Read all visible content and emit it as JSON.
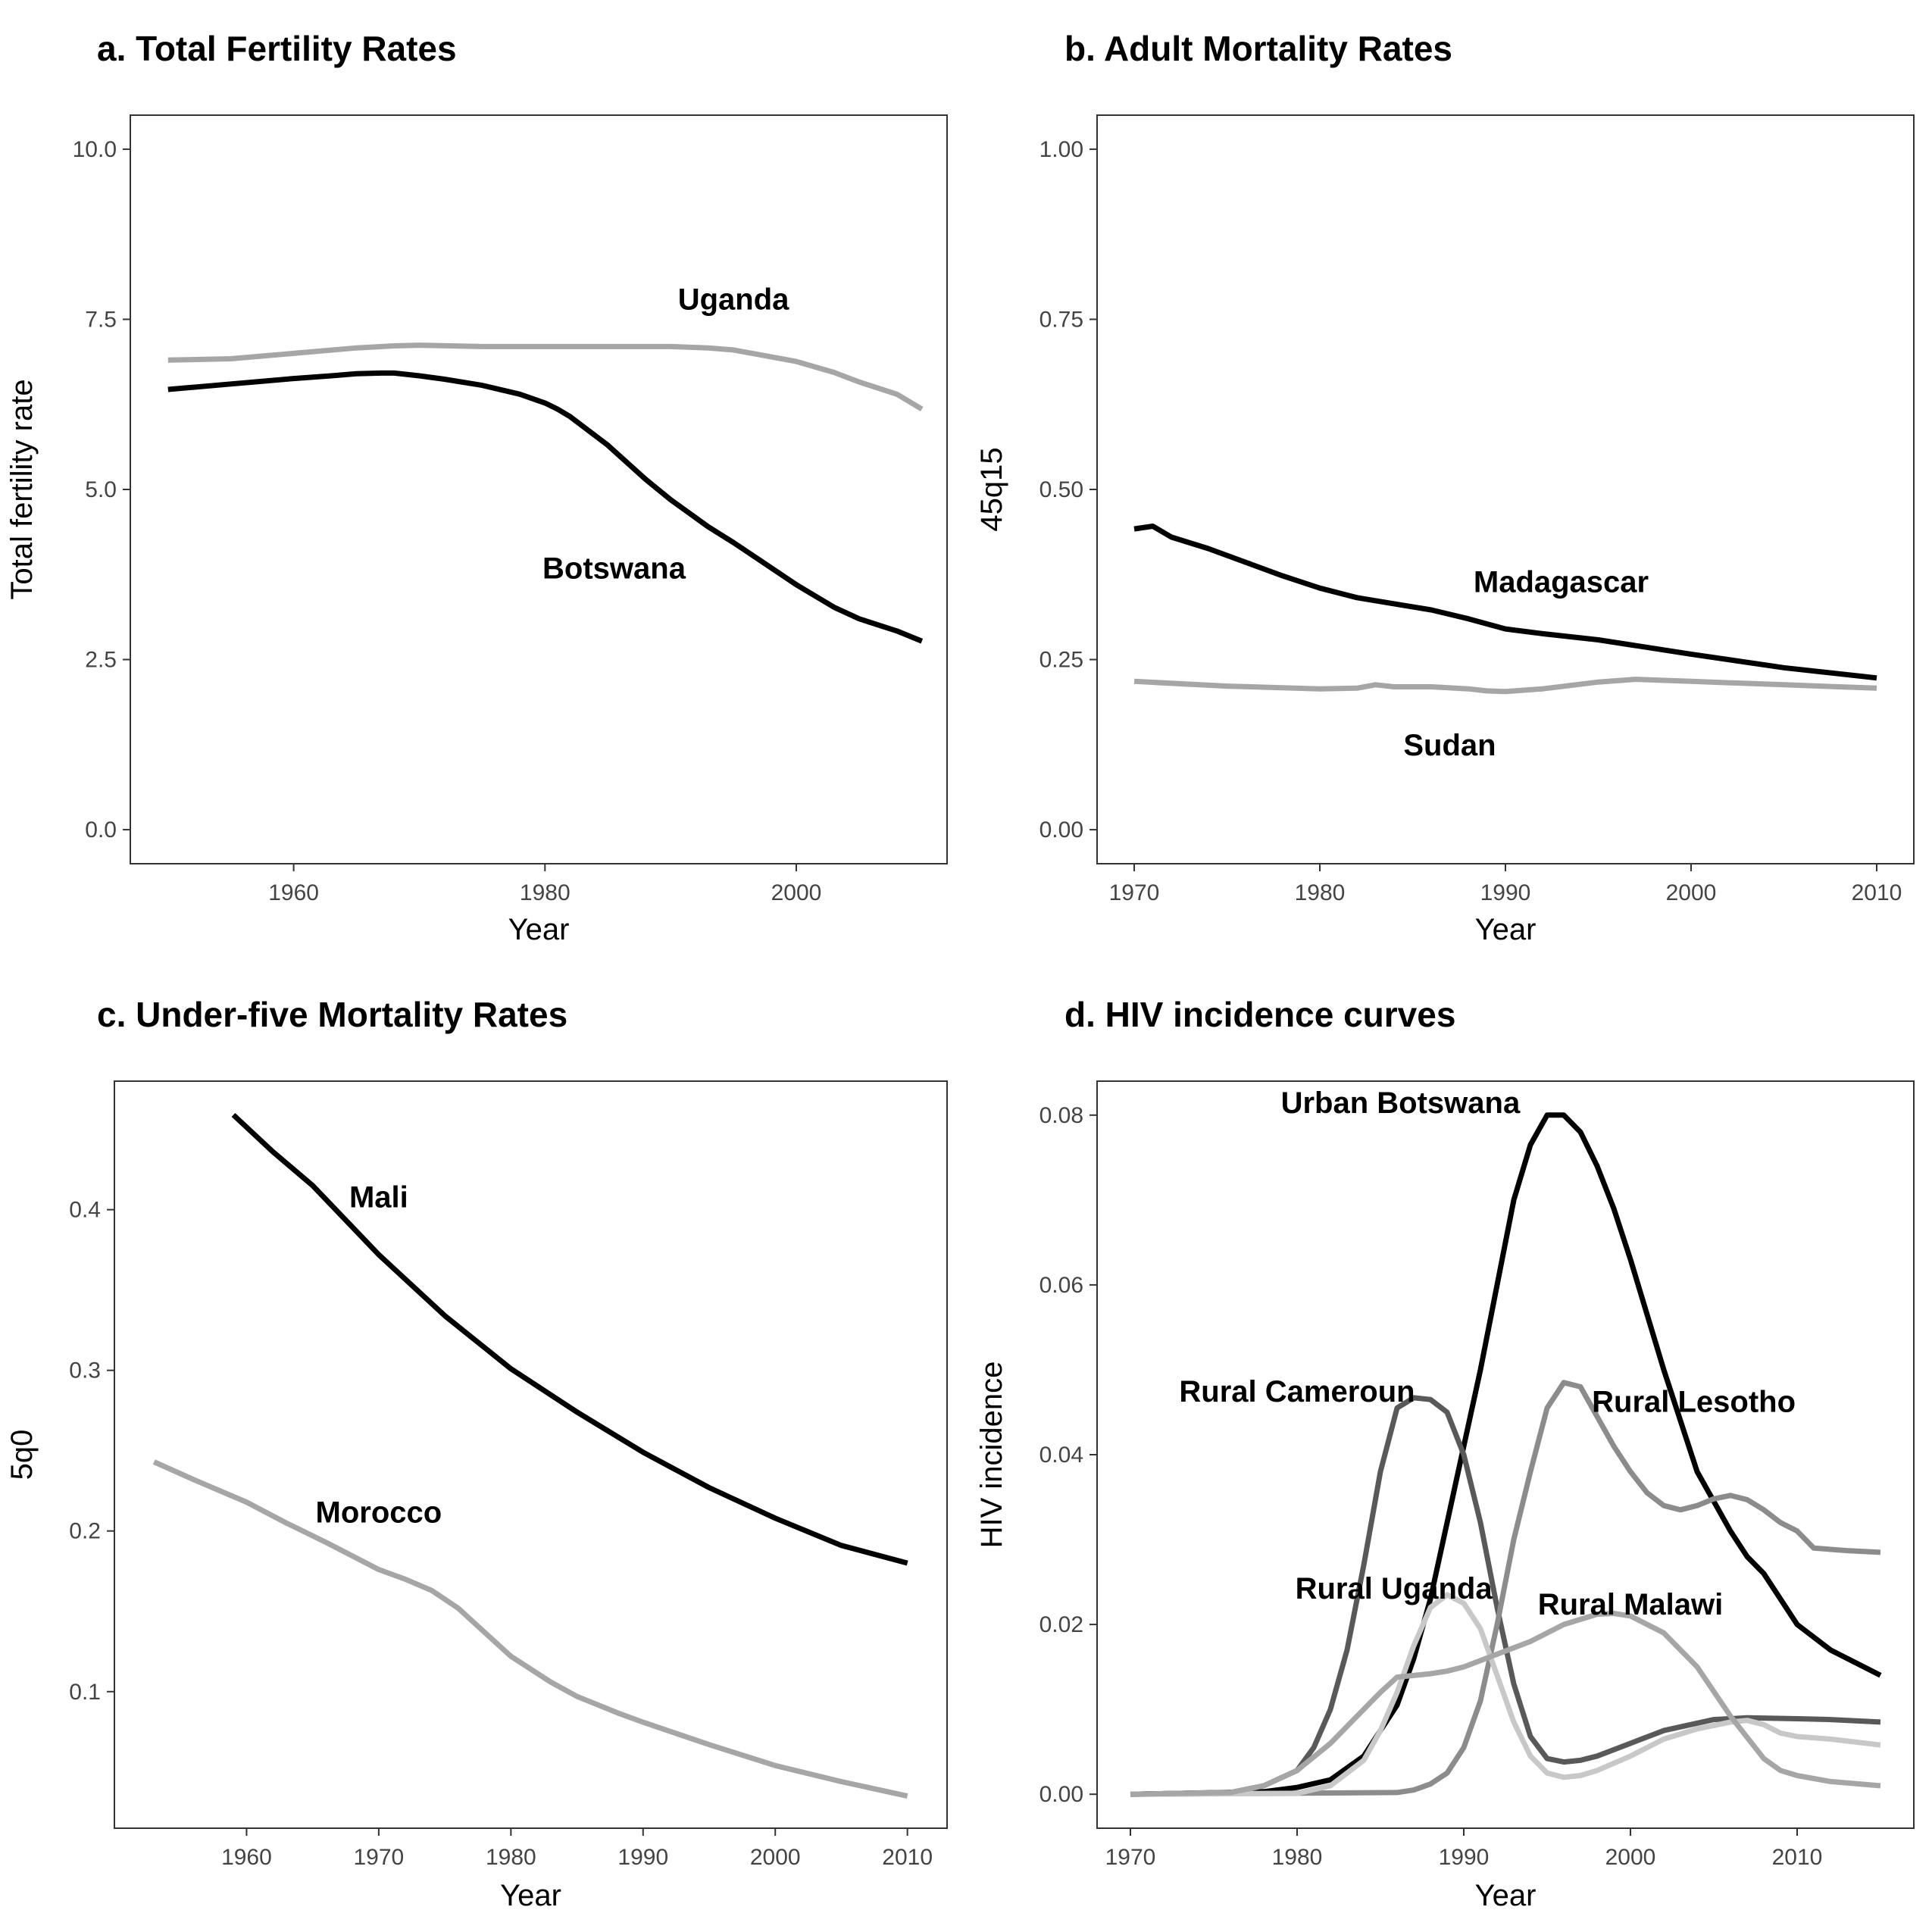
{
  "figure": {
    "background": "#ffffff"
  },
  "chart_data": [
    {
      "id": "a",
      "type": "line",
      "title": "a. Total Fertility Rates",
      "xlabel": "Year",
      "ylabel": "Total fertility rate",
      "xlim": [
        1947,
        2012
      ],
      "ylim": [
        -0.5,
        10.5
      ],
      "xticks": [
        1960,
        1980,
        2000
      ],
      "yticks": [
        0,
        2.5,
        5,
        7.5,
        10
      ],
      "ytick_labels": [
        "0.0",
        "2.5",
        "5.0",
        "7.5",
        "10.0"
      ],
      "grid": false,
      "series": [
        {
          "name": "Uganda",
          "color": "#a6a6a6",
          "x": [
            1950,
            1955,
            1960,
            1965,
            1968,
            1970,
            1975,
            1980,
            1985,
            1990,
            1993,
            1995,
            2000,
            2003,
            2005,
            2008,
            2010
          ],
          "y": [
            6.9,
            6.92,
            7.0,
            7.08,
            7.11,
            7.12,
            7.1,
            7.1,
            7.1,
            7.1,
            7.08,
            7.05,
            6.88,
            6.72,
            6.58,
            6.4,
            6.18
          ]
        },
        {
          "name": "Botswana",
          "color": "#000000",
          "x": [
            1950,
            1955,
            1960,
            1963,
            1965,
            1967,
            1968,
            1970,
            1972,
            1975,
            1978,
            1980,
            1981,
            1982,
            1985,
            1988,
            1990,
            1993,
            1995,
            2000,
            2003,
            2005,
            2008,
            2010
          ],
          "y": [
            6.47,
            6.55,
            6.63,
            6.67,
            6.7,
            6.71,
            6.71,
            6.67,
            6.62,
            6.53,
            6.4,
            6.27,
            6.18,
            6.07,
            5.65,
            5.15,
            4.85,
            4.45,
            4.22,
            3.6,
            3.27,
            3.1,
            2.92,
            2.77
          ]
        }
      ],
      "labels": [
        {
          "text": "Uganda",
          "x": 1995,
          "y": 7.8
        },
        {
          "text": "Botswana",
          "x": 1985.5,
          "y": 3.85
        }
      ]
    },
    {
      "id": "b",
      "type": "line",
      "title": "b. Adult Mortality Rates",
      "xlabel": "Year",
      "ylabel": "45q15",
      "xlim": [
        1968,
        2012
      ],
      "ylim": [
        -0.05,
        1.05
      ],
      "xticks": [
        1970,
        1980,
        1990,
        2000,
        2010
      ],
      "yticks": [
        0,
        0.25,
        0.5,
        0.75,
        1.0
      ],
      "ytick_labels": [
        "0.00",
        "0.25",
        "0.50",
        "0.75",
        "1.00"
      ],
      "grid": false,
      "series": [
        {
          "name": "Madagascar",
          "color": "#000000",
          "x": [
            1970,
            1971,
            1972,
            1974,
            1976,
            1978,
            1980,
            1982,
            1984,
            1986,
            1988,
            1990,
            1992,
            1995,
            2000,
            2005,
            2010
          ],
          "y": [
            0.442,
            0.446,
            0.43,
            0.413,
            0.393,
            0.373,
            0.355,
            0.341,
            0.332,
            0.323,
            0.31,
            0.295,
            0.288,
            0.279,
            0.258,
            0.238,
            0.223
          ]
        },
        {
          "name": "Sudan",
          "color": "#a6a6a6",
          "x": [
            1970,
            1975,
            1980,
            1982,
            1983,
            1984,
            1986,
            1988,
            1989,
            1990,
            1992,
            1995,
            1997,
            2000,
            2005,
            2010
          ],
          "y": [
            0.218,
            0.211,
            0.207,
            0.208,
            0.213,
            0.21,
            0.21,
            0.207,
            0.204,
            0.203,
            0.207,
            0.217,
            0.221,
            0.218,
            0.213,
            0.208
          ]
        }
      ],
      "labels": [
        {
          "text": "Madagascar",
          "x": 1993,
          "y": 0.365
        },
        {
          "text": "Sudan",
          "x": 1987,
          "y": 0.125
        }
      ]
    },
    {
      "id": "c",
      "type": "line",
      "title": "c. Under-five Mortality Rates",
      "xlabel": "Year",
      "ylabel": "5q0",
      "xlim": [
        1950,
        2013
      ],
      "ylim": [
        0.015,
        0.48
      ],
      "xticks": [
        1960,
        1970,
        1980,
        1990,
        2000,
        2010
      ],
      "yticks": [
        0.1,
        0.2,
        0.3,
        0.4
      ],
      "ytick_labels": [
        "0.1",
        "0.2",
        "0.3",
        "0.4"
      ],
      "grid": false,
      "series": [
        {
          "name": "Mali",
          "color": "#000000",
          "x": [
            1959,
            1962,
            1965,
            1970,
            1975,
            1980,
            1985,
            1990,
            1995,
            2000,
            2005,
            2010
          ],
          "y": [
            0.459,
            0.436,
            0.415,
            0.372,
            0.334,
            0.301,
            0.274,
            0.249,
            0.227,
            0.208,
            0.191,
            0.18
          ]
        },
        {
          "name": "Morocco",
          "color": "#a6a6a6",
          "x": [
            1953,
            1956,
            1960,
            1963,
            1966,
            1970,
            1972,
            1974,
            1976,
            1978,
            1980,
            1983,
            1985,
            1988,
            1990,
            1995,
            2000,
            2005,
            2010
          ],
          "y": [
            0.243,
            0.232,
            0.218,
            0.205,
            0.193,
            0.176,
            0.17,
            0.163,
            0.152,
            0.137,
            0.122,
            0.106,
            0.097,
            0.087,
            0.081,
            0.067,
            0.054,
            0.044,
            0.035
          ]
        }
      ],
      "labels": [
        {
          "text": "Mali",
          "x": 1970,
          "y": 0.408
        },
        {
          "text": "Morocco",
          "x": 1970,
          "y": 0.212
        }
      ]
    },
    {
      "id": "d",
      "type": "line",
      "title": "d. HIV incidence curves",
      "xlabel": "Year",
      "ylabel": "HIV incidence",
      "xlim": [
        1968,
        2017
      ],
      "ylim": [
        -0.004,
        0.084
      ],
      "xticks": [
        1970,
        1980,
        1990,
        2000,
        2010
      ],
      "yticks": [
        0,
        0.02,
        0.04,
        0.06,
        0.08
      ],
      "ytick_labels": [
        "0.00",
        "0.02",
        "0.04",
        "0.06",
        "0.08"
      ],
      "grid": false,
      "series": [
        {
          "name": "Urban Botswana",
          "color": "#000000",
          "x": [
            1970,
            1978,
            1980,
            1982,
            1984,
            1986,
            1987,
            1988,
            1989,
            1990,
            1991,
            1992,
            1993,
            1994,
            1995,
            1996,
            1997,
            1998,
            1999,
            2000,
            2002,
            2004,
            2006,
            2007,
            2008,
            2010,
            2012,
            2015
          ],
          "y": [
            0,
            0.0003,
            0.0008,
            0.0017,
            0.0045,
            0.0105,
            0.016,
            0.023,
            0.032,
            0.041,
            0.05,
            0.06,
            0.07,
            0.0765,
            0.08,
            0.08,
            0.078,
            0.074,
            0.069,
            0.063,
            0.05,
            0.038,
            0.031,
            0.028,
            0.026,
            0.02,
            0.017,
            0.014
          ]
        },
        {
          "name": "Rural Cameroun",
          "color": "#595959",
          "x": [
            1970,
            1976,
            1978,
            1980,
            1981,
            1982,
            1983,
            1984,
            1985,
            1986,
            1987,
            1988,
            1989,
            1990,
            1991,
            1992,
            1993,
            1994,
            1995,
            1996,
            1997,
            1998,
            2000,
            2002,
            2005,
            2007,
            2010,
            2012,
            2015
          ],
          "y": [
            0,
            0.0002,
            0.001,
            0.0028,
            0.0055,
            0.01,
            0.017,
            0.027,
            0.038,
            0.0455,
            0.0467,
            0.0465,
            0.045,
            0.04,
            0.032,
            0.022,
            0.013,
            0.0068,
            0.0042,
            0.0038,
            0.004,
            0.0045,
            0.006,
            0.0075,
            0.0088,
            0.009,
            0.0089,
            0.0088,
            0.0085
          ]
        },
        {
          "name": "Rural Lesotho",
          "color": "#8c8c8c",
          "x": [
            1970,
            1986,
            1987,
            1988,
            1989,
            1990,
            1991,
            1992,
            1993,
            1994,
            1995,
            1996,
            1997,
            1998,
            1999,
            2000,
            2001,
            2002,
            2003,
            2004,
            2005,
            2006,
            2007,
            2008,
            2009,
            2010,
            2011,
            2013,
            2015
          ],
          "y": [
            0,
            0.0002,
            0.0005,
            0.0012,
            0.0025,
            0.0055,
            0.011,
            0.02,
            0.03,
            0.038,
            0.0455,
            0.0485,
            0.048,
            0.0445,
            0.041,
            0.038,
            0.0355,
            0.034,
            0.0335,
            0.034,
            0.0348,
            0.0352,
            0.0347,
            0.0335,
            0.032,
            0.031,
            0.029,
            0.0287,
            0.0285
          ]
        },
        {
          "name": "Rural Uganda",
          "color": "#c8c8c8",
          "x": [
            1970,
            1980,
            1982,
            1984,
            1985,
            1986,
            1987,
            1988,
            1989,
            1990,
            1991,
            1992,
            1993,
            1994,
            1995,
            1996,
            1997,
            1998,
            2000,
            2002,
            2004,
            2006,
            2007,
            2008,
            2009,
            2010,
            2012,
            2015
          ],
          "y": [
            0,
            0.0001,
            0.001,
            0.004,
            0.0075,
            0.012,
            0.0175,
            0.022,
            0.0235,
            0.0225,
            0.0195,
            0.014,
            0.0085,
            0.0045,
            0.0025,
            0.002,
            0.0022,
            0.0028,
            0.0045,
            0.0065,
            0.0077,
            0.0085,
            0.0087,
            0.0082,
            0.0072,
            0.0068,
            0.0065,
            0.0058
          ]
        },
        {
          "name": "Rural Malawi",
          "color": "#a6a6a6",
          "x": [
            1970,
            1976,
            1978,
            1980,
            1982,
            1984,
            1985,
            1986,
            1988,
            1989,
            1990,
            1992,
            1994,
            1996,
            1998,
            1999,
            2000,
            2002,
            2004,
            2006,
            2008,
            2009,
            2010,
            2012,
            2015
          ],
          "y": [
            0,
            0.0002,
            0.001,
            0.0028,
            0.006,
            0.01,
            0.012,
            0.0138,
            0.0142,
            0.0145,
            0.015,
            0.0165,
            0.018,
            0.02,
            0.0212,
            0.0213,
            0.021,
            0.019,
            0.015,
            0.0092,
            0.0042,
            0.0028,
            0.0022,
            0.0015,
            0.001
          ]
        }
      ],
      "labels": [
        {
          "text": "Urban Botswana",
          "x": 1986.2,
          "y": 0.0815
        },
        {
          "text": "Rural Cameroun",
          "x": 1980,
          "y": 0.0475
        },
        {
          "text": "Rural Lesotho",
          "x": 2003.8,
          "y": 0.0463
        },
        {
          "text": "Rural Uganda",
          "x": 1985.8,
          "y": 0.0243
        },
        {
          "text": "Rural Malawi",
          "x": 2000,
          "y": 0.0224
        }
      ]
    }
  ]
}
